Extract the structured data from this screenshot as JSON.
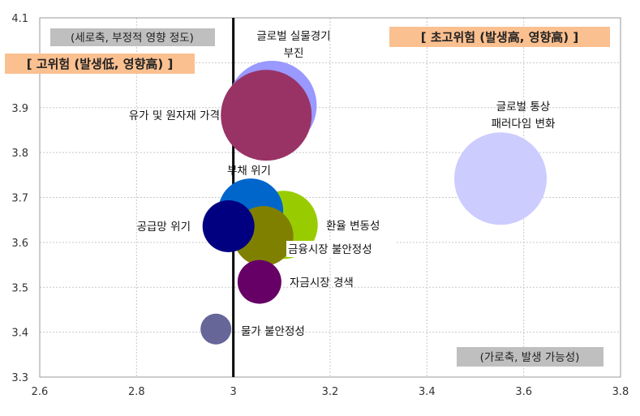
{
  "chart_data": {
    "type": "bubble",
    "title": "",
    "xlabel": "(가로축, 발생 가능성)",
    "ylabel": "(세로축, 부정적 영향 정도)",
    "xlim": [
      2.6,
      3.8
    ],
    "ylim": [
      3.3,
      4.1
    ],
    "x_ticks": [
      "2.6",
      "2.8",
      "3",
      "3.2",
      "3.4",
      "3.6",
      "3.8"
    ],
    "y_ticks": [
      "3.3",
      "3.4",
      "3.5",
      "3.6",
      "3.7",
      "3.8",
      "3.9",
      "4",
      "4.1"
    ],
    "grid": true,
    "reference_line_x": 3.0,
    "annotations": {
      "high_risk": "[ 고위험 (발생低, 영향高) ]",
      "very_high_risk": "[ 초고위험 (발생高, 영향高) ]"
    },
    "series": [
      {
        "name": "글로벌 실물경기 부진",
        "lines": [
          "글로벌 실물경기",
          "부진"
        ],
        "x": 3.08,
        "y": 3.905,
        "size": 55,
        "color": "#9999FF"
      },
      {
        "name": "유가 및 원자재 가격",
        "lines": [
          "유가 및 원자재 가격"
        ],
        "x": 3.068,
        "y": 3.883,
        "size": 56,
        "color": "#993366"
      },
      {
        "name": "글로벌 통상 패러다임 변화",
        "lines": [
          "글로벌 통상",
          "패러다임 변화"
        ],
        "x": 3.552,
        "y": 3.742,
        "size": 57,
        "color": "#CCCCFF"
      },
      {
        "name": "환율 변동성",
        "lines": [
          "환율 변동성"
        ],
        "x": 3.104,
        "y": 3.639,
        "size": 42,
        "color": "#99CC00"
      },
      {
        "name": "부채 위기",
        "lines": [
          "부채 위기"
        ],
        "x": 3.036,
        "y": 3.67,
        "size": 40,
        "color": "#0066CC"
      },
      {
        "name": "금융시장 불안정성",
        "lines": [
          "금융시장 불안정성"
        ],
        "x": 3.062,
        "y": 3.614,
        "size": 37,
        "color": "#808000"
      },
      {
        "name": "공급망 위기",
        "lines": [
          "공급망 위기"
        ],
        "x": 2.99,
        "y": 3.636,
        "size": 32,
        "color": "#000080"
      },
      {
        "name": "자금시장 경색",
        "lines": [
          "자금시장 경색"
        ],
        "x": 3.054,
        "y": 3.512,
        "size": 27,
        "color": "#660066"
      },
      {
        "name": "물가 불안정성",
        "lines": [
          "물가 불안정성"
        ],
        "x": 2.964,
        "y": 3.407,
        "size": 19,
        "color": "#666699"
      }
    ]
  }
}
